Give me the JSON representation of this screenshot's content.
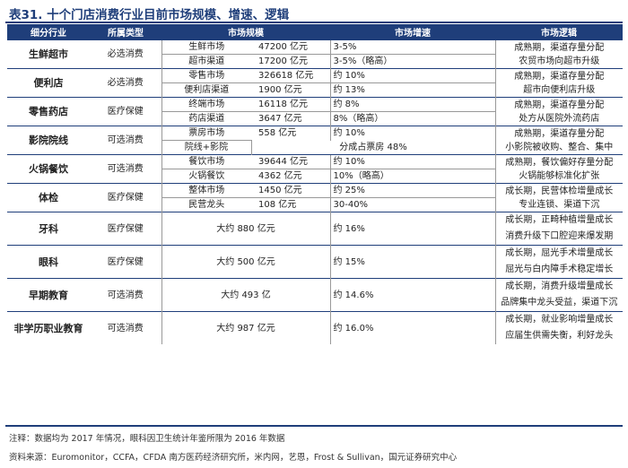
{
  "title": "表31. 十个门店消费行业目前市场规模、增速、逻辑",
  "headers": [
    "细分行业",
    "所属类型",
    "市场规模",
    "市场增速",
    "市场逻辑"
  ],
  "rows": [
    {
      "industry": "生鲜超市",
      "category": "必选消费",
      "subs": [
        {
          "name": "生鲜市场",
          "size": "47200 亿元",
          "growth": "3-5%"
        },
        {
          "name": "超市渠道",
          "size": "17200 亿元",
          "growth": "3-5%（略高）"
        }
      ],
      "logic": [
        "成熟期，渠道存量分配",
        "农贸市场向超市升级"
      ]
    },
    {
      "industry": "便利店",
      "category": "必选消费",
      "subs": [
        {
          "name": "零售市场",
          "size": "326618 亿元",
          "growth": "约 10%"
        },
        {
          "name": "便利店渠道",
          "size": "1900 亿元",
          "growth": "约 13%"
        }
      ],
      "logic": [
        "成熟期，渠道存量分配",
        "超市向便利店升级"
      ]
    },
    {
      "industry": "零售药店",
      "category": "医疗保健",
      "subs": [
        {
          "name": "终端市场",
          "size": "16118 亿元",
          "growth": "约 8%"
        },
        {
          "name": "药店渠道",
          "size": "3647 亿元",
          "growth": "8%（略高）"
        }
      ],
      "logic": [
        "成熟期，渠道存量分配",
        "处方从医院外流药店"
      ]
    },
    {
      "industry": "影院院线",
      "category": "可选消费",
      "subs": [
        {
          "name": "票房市场",
          "size": "558 亿元",
          "growth": "约 10%"
        }
      ],
      "span_row": {
        "name": "院线+影院",
        "text": "分成占票房 48%"
      },
      "logic": [
        "成熟期，渠道存量分配",
        "小影院被收购、整合、集中"
      ]
    },
    {
      "industry": "火锅餐饮",
      "category": "可选消费",
      "subs": [
        {
          "name": "餐饮市场",
          "size": "39644 亿元",
          "growth": "约 10%"
        },
        {
          "name": "火锅餐饮",
          "size": "4362 亿元",
          "growth": "10%（略高）"
        }
      ],
      "logic": [
        "成熟期，餐饮偏好存量分配",
        "火锅能够标准化扩张"
      ]
    },
    {
      "industry": "体检",
      "category": "医疗保健",
      "subs": [
        {
          "name": "整体市场",
          "size": "1450 亿元",
          "growth": "约 25%"
        },
        {
          "name": "民营龙头",
          "size": "108 亿元",
          "growth": "30-40%"
        }
      ],
      "logic": [
        "成长期，民营体检增量成长",
        "专业连锁、渠道下沉"
      ]
    },
    {
      "industry": "牙科",
      "category": "医疗保健",
      "merged": {
        "size": "大约 880 亿元",
        "growth": "约 16%"
      },
      "logic": [
        "成长期，正畸种植增量成长",
        "消费升级下口腔迎来爆发期"
      ]
    },
    {
      "industry": "眼科",
      "category": "医疗保健",
      "merged": {
        "size": "大约 500 亿元",
        "growth": "约 15%"
      },
      "logic": [
        "成长期，屈光手术增量成长",
        "屈光与白内障手术稳定增长"
      ]
    },
    {
      "industry": "早期教育",
      "category": "可选消费",
      "merged": {
        "size": "大约 493 亿",
        "growth": "约 14.6%"
      },
      "logic": [
        "成长期，消费升级增量成长",
        "品牌集中龙头受益，渠道下沉"
      ]
    },
    {
      "industry": "非学历职业教育",
      "category": "可选消费",
      "merged": {
        "size": "大约 987 亿元",
        "growth": "约 16.0%"
      },
      "logic": [
        "成长期，就业影响增量成长",
        "应届生供需失衡，利好龙头"
      ]
    }
  ],
  "note": "注释：数据均为 2017 年情况，眼科因卫生统计年鉴所限为 2016 年数据",
  "source": "资料来源：Euromonitor，CCFA，CFDA 南方医药经济研究所，米内网，艺恩，Frost & Sullivan，国元证券研究中心",
  "colors": {
    "header_bg": "#1f3e7a",
    "title": "#1f3e7a"
  }
}
